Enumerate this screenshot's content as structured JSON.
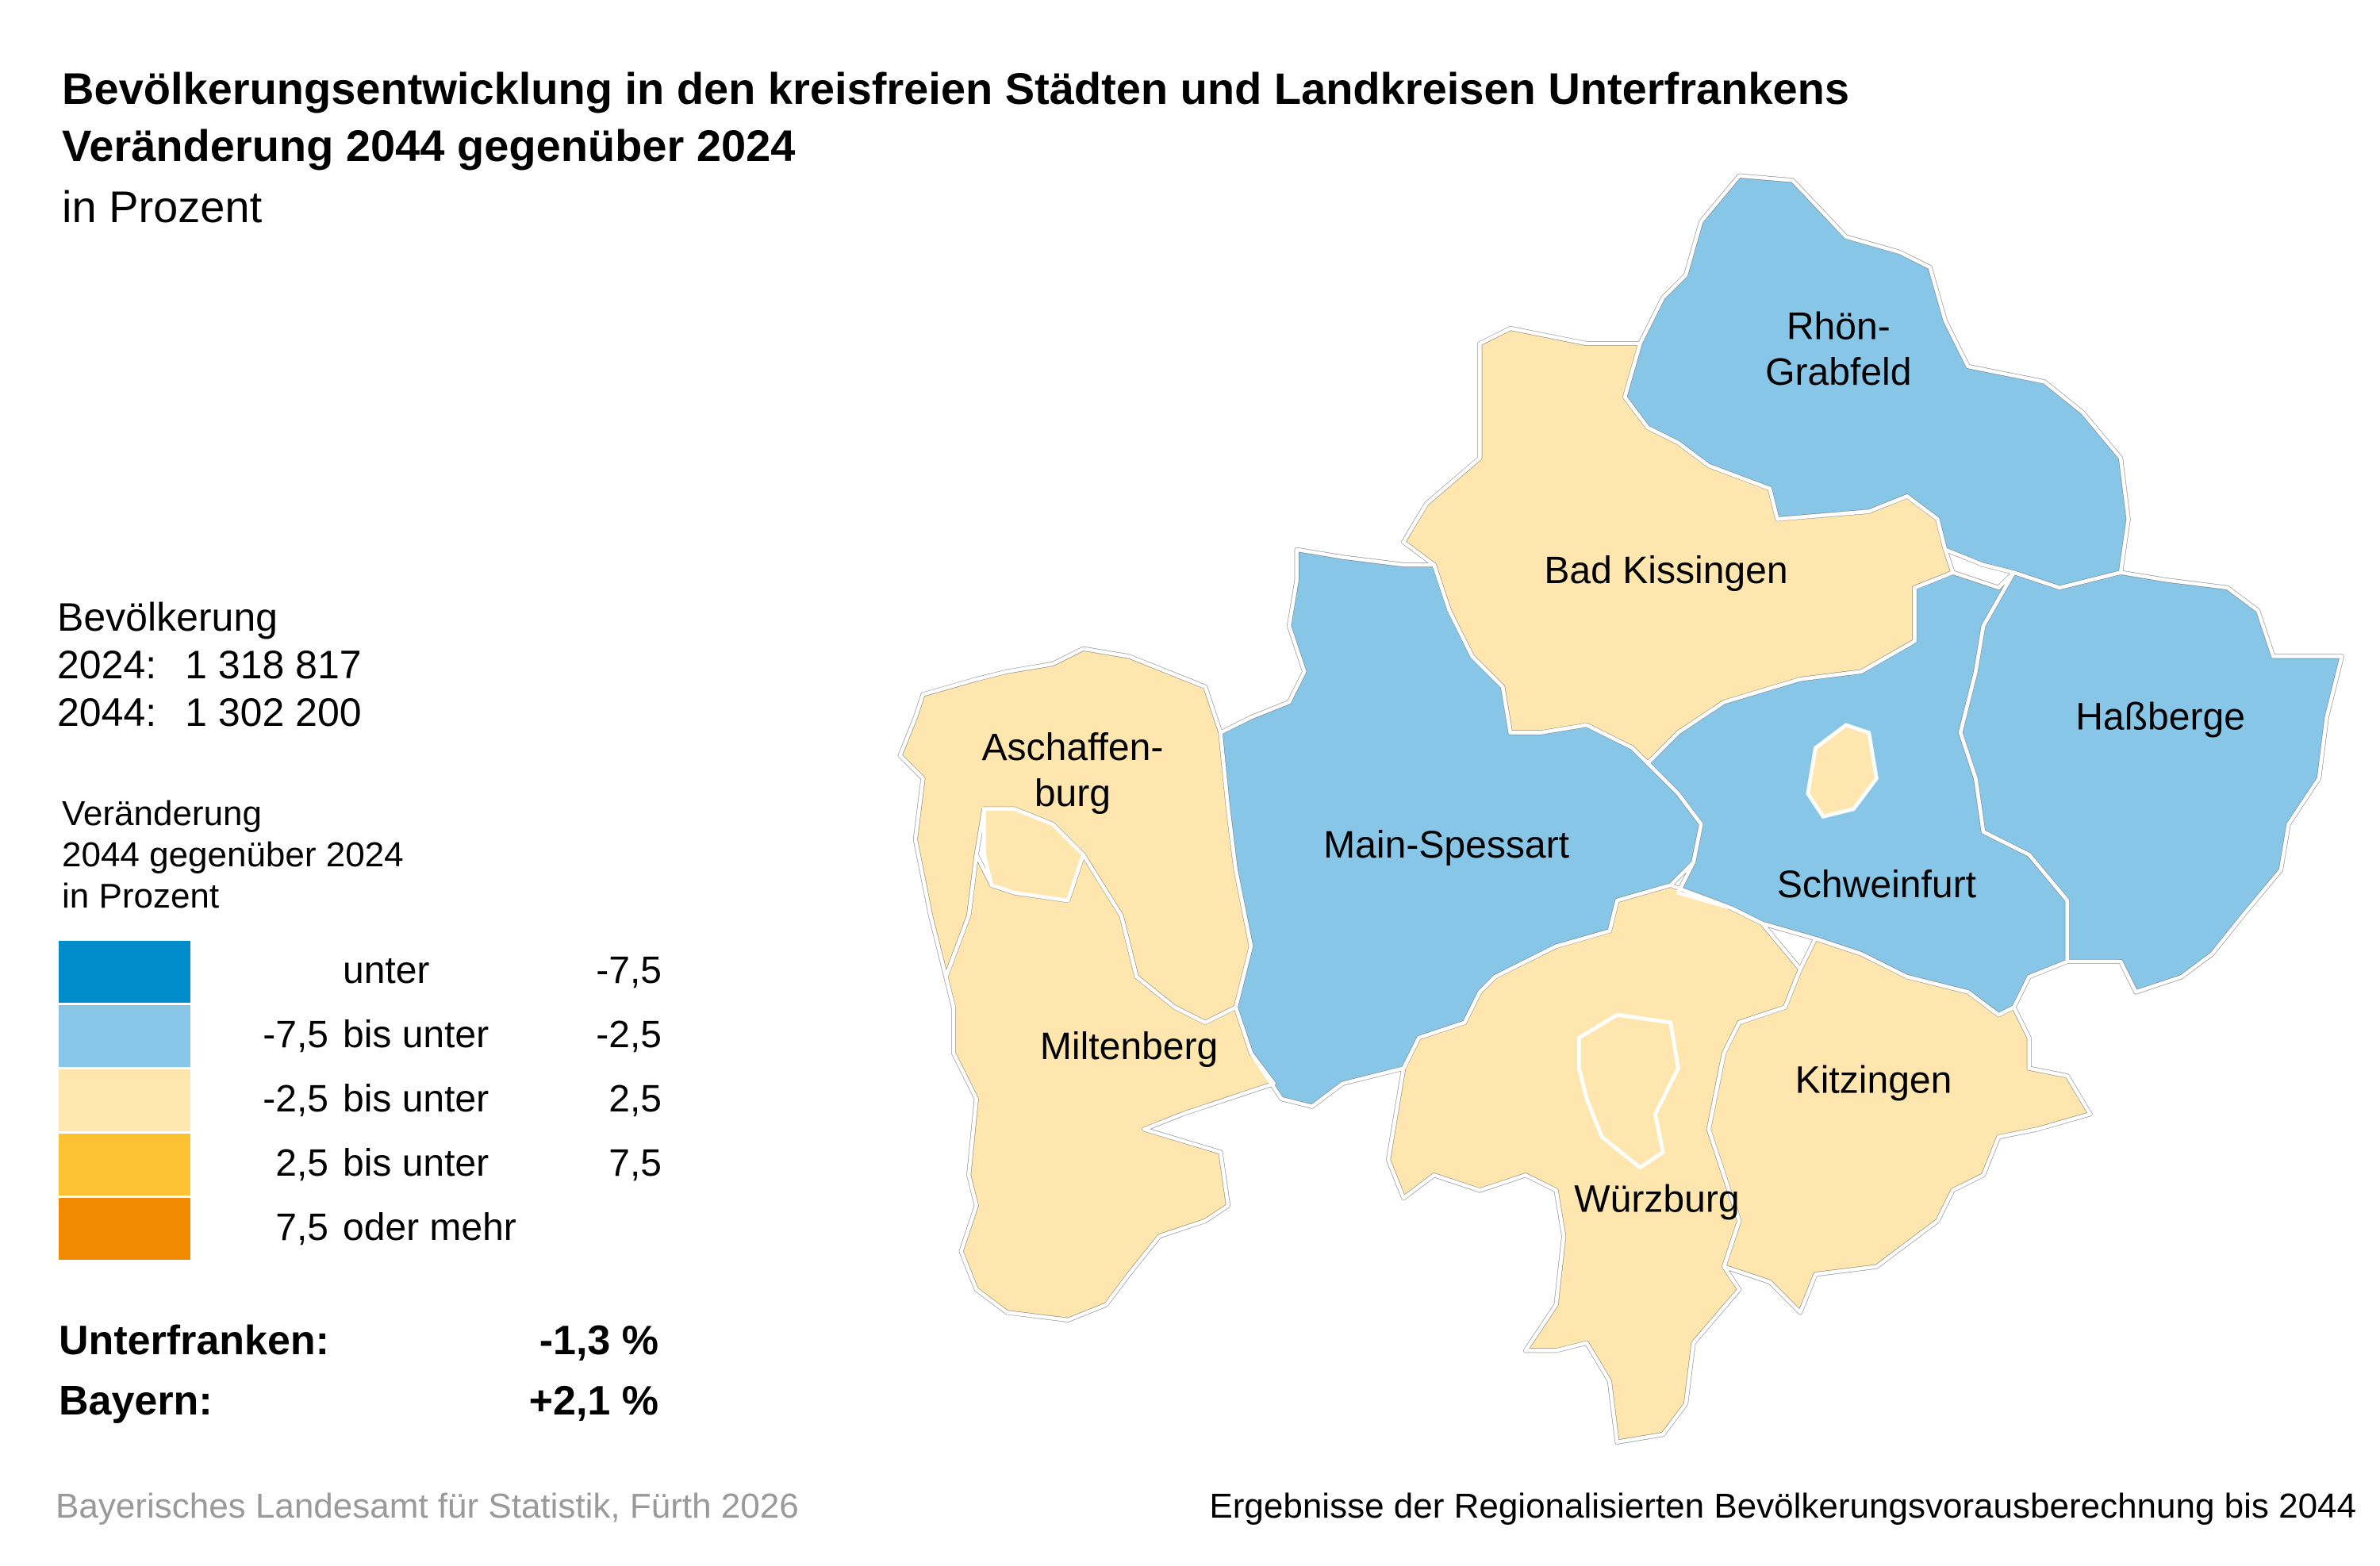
{
  "title": {
    "line1": "Bevölkerungsentwicklung in den kreisfreien Städten und Landkreisen Unterfrankens",
    "line2": "Veränderung 2044 gegenüber 2024",
    "unit": "in Prozent"
  },
  "population": {
    "heading": "Bevölkerung",
    "rows": [
      {
        "year": "2024:",
        "value": "1 318 817"
      },
      {
        "year": "2044:",
        "value": "1 302 200"
      }
    ]
  },
  "legend": {
    "title1": "Veränderung",
    "title2": "2044 gegenüber 2024",
    "title3": "in Prozent",
    "classes": [
      {
        "low": "",
        "mid": "unter",
        "high": "-7,5",
        "color": "#008bcb"
      },
      {
        "low": "-7,5",
        "mid": "bis unter",
        "high": "-2,5",
        "color": "#88c6e7"
      },
      {
        "low": "-2,5",
        "mid": "bis unter",
        "high": "2,5",
        "color": "#fee6ae"
      },
      {
        "low": "2,5",
        "mid": "bis unter",
        "high": "7,5",
        "color": "#fdc232"
      },
      {
        "low": "7,5",
        "mid": "oder mehr",
        "high": "",
        "color": "#f18a00"
      }
    ]
  },
  "summary": [
    {
      "label": "Unterfranken:",
      "value": "-1,3 %"
    },
    {
      "label": "Bayern:",
      "value": "+2,1 %"
    }
  ],
  "map": {
    "regions": [
      {
        "name": "Rhön-Grabfeld",
        "label1": "Rhön-",
        "label2": "Grabfeld",
        "class": "-7,5 bis unter -2,5",
        "color": "#88c6e7"
      },
      {
        "name": "Bad Kissingen",
        "label1": "Bad Kissingen",
        "class": "-2,5 bis unter 2,5",
        "color": "#fee6ae"
      },
      {
        "name": "Main-Spessart",
        "label1": "Main-Spessart",
        "class": "-7,5 bis unter -2,5",
        "color": "#88c6e7"
      },
      {
        "name": "Schweinfurt",
        "label1": "Schweinfurt",
        "class": "-7,5 bis unter -2,5",
        "color": "#88c6e7"
      },
      {
        "name": "Haßberge",
        "label1": "Haßberge",
        "class": "-7,5 bis unter -2,5",
        "color": "#88c6e7"
      },
      {
        "name": "Aschaffenburg",
        "label1": "Aschaffen-",
        "label2": "burg",
        "class": "-2,5 bis unter 2,5",
        "color": "#fee6ae"
      },
      {
        "name": "Miltenberg",
        "label1": "Miltenberg",
        "class": "-2,5 bis unter 2,5",
        "color": "#fee6ae"
      },
      {
        "name": "Würzburg",
        "label1": "Würzburg",
        "class": "-2,5 bis unter 2,5",
        "color": "#fee6ae"
      },
      {
        "name": "Kitzingen",
        "label1": "Kitzingen",
        "class": "-2,5 bis unter 2,5",
        "color": "#fee6ae"
      }
    ],
    "outline_color": "#6b6b6b"
  },
  "footer": {
    "source": "Bayerisches Landesamt für Statistik, Fürth 2026",
    "note": "Ergebnisse der Regionalisierten Bevölkerungsvorausberechnung bis 2044"
  }
}
